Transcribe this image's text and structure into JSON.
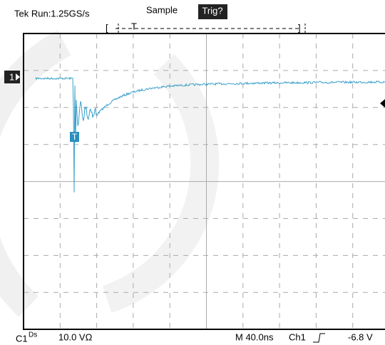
{
  "header": {
    "status": "Tek Run:1.25GS/s",
    "mode": "Sample",
    "trigger_state": "Trig?"
  },
  "channel_marker": "1",
  "trigger_marker": "T",
  "footer": {
    "channel": "C1",
    "coupling": "Ds",
    "volts_per_div": "10.0 VΩ",
    "timebase": "M 40.0ns",
    "trigger_source": "Ch1",
    "trigger_level": "-6.8 V"
  }
}
